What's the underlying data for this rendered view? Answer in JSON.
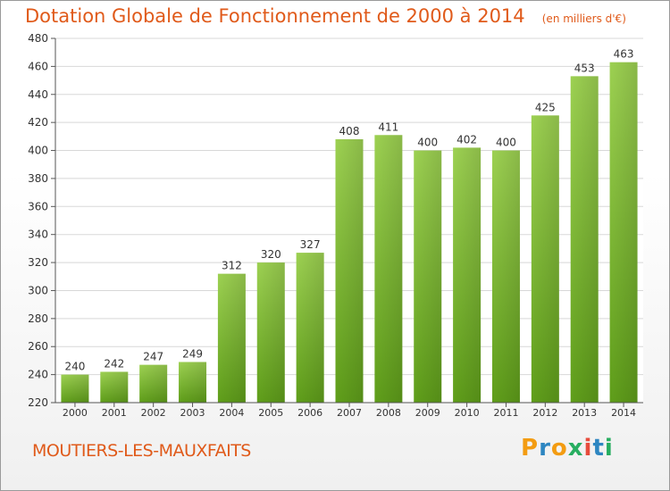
{
  "chart_data": {
    "type": "bar",
    "title": "Dotation Globale de Fonctionnement de 2000 à 2014",
    "subtitle": "(en milliers d'€)",
    "categories": [
      "2000",
      "2001",
      "2002",
      "2003",
      "2004",
      "2005",
      "2006",
      "2007",
      "2008",
      "2009",
      "2010",
      "2011",
      "2012",
      "2013",
      "2014"
    ],
    "values": [
      240,
      242,
      247,
      249,
      312,
      320,
      327,
      408,
      411,
      400,
      402,
      400,
      425,
      453,
      463
    ],
    "ylim": [
      220,
      480
    ],
    "yticks": [
      220,
      240,
      260,
      280,
      300,
      320,
      340,
      360,
      380,
      400,
      420,
      440,
      460,
      480
    ],
    "grid": true,
    "bar_color": "#8cc63f",
    "xlabel": "",
    "ylabel": ""
  },
  "commune": "MOUTIERS-LES-MAUXFAITS",
  "logo": {
    "letters": [
      "P",
      "r",
      "o",
      "x",
      "i",
      "t",
      "i"
    ],
    "colors": [
      "#f39c12",
      "#2e86c1",
      "#f39c12",
      "#27ae60",
      "#e74c3c",
      "#2e86c1",
      "#27ae60"
    ]
  },
  "colors": {
    "title": "#e05a1a",
    "axis_text": "#333333",
    "grid": "#d8d8d8"
  }
}
